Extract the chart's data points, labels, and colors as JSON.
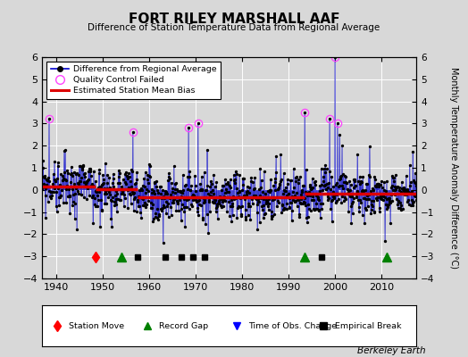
{
  "title": "FORT RILEY MARSHALL AAF",
  "subtitle": "Difference of Station Temperature Data from Regional Average",
  "ylabel_right": "Monthly Temperature Anomaly Difference (°C)",
  "xlim": [
    1937,
    2017.5
  ],
  "ylim": [
    -4,
    6
  ],
  "yticks": [
    -4,
    -3,
    -2,
    -1,
    0,
    1,
    2,
    3,
    4,
    5,
    6
  ],
  "xticks": [
    1940,
    1950,
    1960,
    1970,
    1980,
    1990,
    2000,
    2010
  ],
  "bg_color": "#d8d8d8",
  "grid_color": "#ffffff",
  "line_color": "#0000cc",
  "marker_color": "#000000",
  "qc_color": "#ff44ff",
  "bias_color": "#dd0000",
  "watermark": "Berkeley Earth",
  "station_moves": [
    1948.5
  ],
  "record_gaps": [
    1954.0,
    1993.5,
    2011.0
  ],
  "tobs_changes": [],
  "empirical_breaks": [
    1957.5,
    1963.5,
    1967.0,
    1969.5,
    1972.0,
    1997.0
  ],
  "bias_segments": [
    {
      "xstart": 1937,
      "xend": 1948.5,
      "bias": 0.15
    },
    {
      "xstart": 1948.5,
      "xend": 1957.5,
      "bias": 0.05
    },
    {
      "xstart": 1957.5,
      "xend": 1993.5,
      "bias": -0.35
    },
    {
      "xstart": 1993.5,
      "xend": 1997.0,
      "bias": -0.18
    },
    {
      "xstart": 1997.0,
      "xend": 2017.5,
      "bias": -0.15
    }
  ],
  "event_y": -3.05,
  "rand_seed": 99,
  "years_start": 1937,
  "years_end": 2017
}
